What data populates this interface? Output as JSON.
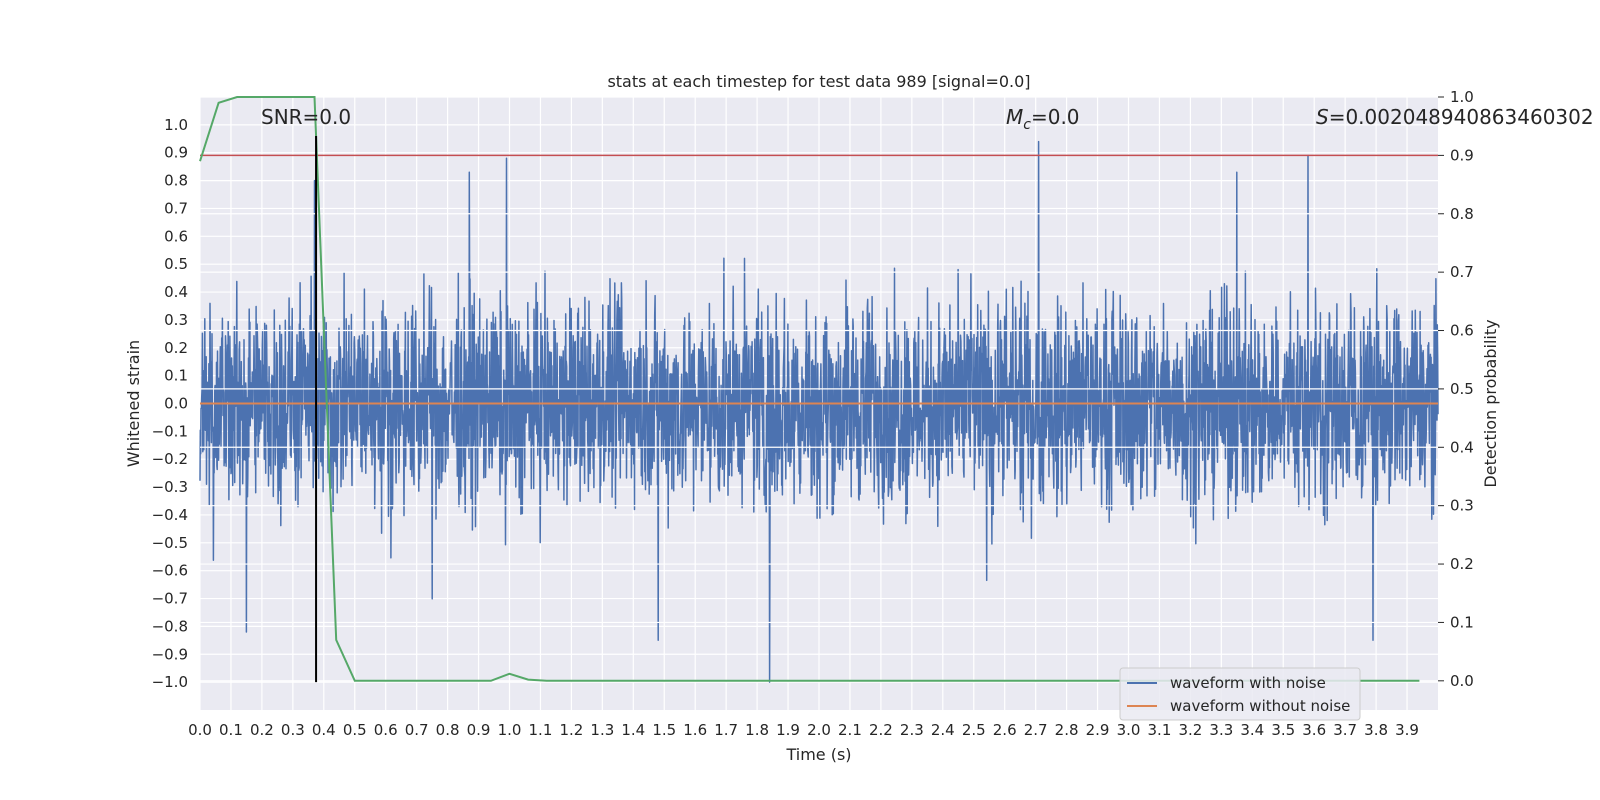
{
  "chart_data": {
    "type": "line",
    "title": "stats at each timestep for test data 989 [signal=0.0]",
    "xlabel": "Time (s)",
    "ylabel": "Whitened strain",
    "y2label": "Detection probability",
    "xlim": [
      0.0,
      4.0
    ],
    "ylim": [
      -1.1,
      1.1
    ],
    "y2lim": [
      -0.05,
      1.0
    ],
    "grid": true,
    "legend_position": "lower-right",
    "x_ticks": [
      "0.0",
      "0.1",
      "0.2",
      "0.3",
      "0.4",
      "0.5",
      "0.6",
      "0.7",
      "0.8",
      "0.9",
      "1.0",
      "1.1",
      "1.2",
      "1.3",
      "1.4",
      "1.5",
      "1.6",
      "1.7",
      "1.8",
      "1.9",
      "2.0",
      "2.1",
      "2.2",
      "2.3",
      "2.4",
      "2.5",
      "2.6",
      "2.7",
      "2.8",
      "2.9",
      "3.0",
      "3.1",
      "3.2",
      "3.3",
      "3.4",
      "3.5",
      "3.6",
      "3.7",
      "3.8",
      "3.9"
    ],
    "y_ticks": [
      "1.0",
      "0.9",
      "0.8",
      "0.7",
      "0.6",
      "0.5",
      "0.4",
      "0.3",
      "0.2",
      "0.1",
      "0.0",
      "−0.1",
      "−0.2",
      "−0.3",
      "−0.4",
      "−0.5",
      "−0.6",
      "−0.7",
      "−0.8",
      "−0.9",
      "−1.0"
    ],
    "y2_ticks": [
      "1.0",
      "0.9",
      "0.8",
      "0.7",
      "0.6",
      "0.5",
      "0.4",
      "0.3",
      "0.2",
      "0.1",
      "0.0"
    ],
    "annotations": {
      "snr": "SNR=0.0",
      "mc_symbol": "M",
      "mc_sub": "c",
      "mc_value": "=0.0",
      "s_symbol": "S",
      "s_value": "=0.002048940863460302"
    },
    "legend": {
      "noisy": "waveform with noise",
      "clean": "waveform without noise"
    },
    "series": [
      {
        "name": "waveform with noise",
        "color": "#4c72b0",
        "description": "dense noise trace, mostly within ±0.5 with spikes",
        "spikes": [
          {
            "x": 0.37,
            "y": 0.8
          },
          {
            "x": 0.87,
            "y": 0.83
          },
          {
            "x": 0.99,
            "y": 0.88
          },
          {
            "x": 2.71,
            "y": 0.94
          },
          {
            "x": 3.58,
            "y": 0.89
          },
          {
            "x": 3.35,
            "y": 0.83
          },
          {
            "x": 1.84,
            "y": -1.0
          },
          {
            "x": 3.79,
            "y": -0.85
          },
          {
            "x": 1.48,
            "y": -0.85
          },
          {
            "x": 0.15,
            "y": -0.82
          }
        ]
      },
      {
        "name": "waveform without noise",
        "color": "#dd8452",
        "x": [
          0.0,
          4.0
        ],
        "y": [
          0.0,
          0.0
        ]
      },
      {
        "name": "detection probability",
        "color": "#55a868",
        "axis": "y2",
        "x": [
          0.0,
          0.06,
          0.12,
          0.19,
          0.25,
          0.31,
          0.37,
          0.44,
          0.5,
          0.56,
          0.62,
          0.69,
          0.75,
          0.81,
          0.87,
          0.94,
          1.0,
          1.06,
          1.12,
          1.5,
          2.0,
          2.5,
          3.0,
          3.5,
          3.94
        ],
        "y": [
          0.89,
          0.99,
          1.0,
          1.0,
          1.0,
          1.0,
          1.0,
          0.07,
          0.0,
          0.0,
          0.0,
          0.0,
          0.0,
          0.0,
          0.0,
          0.0,
          0.012,
          0.002,
          0.0,
          0.0,
          0.0,
          0.0,
          0.0,
          0.0,
          0.0
        ]
      }
    ],
    "threshold": {
      "color": "#c44e52",
      "y2": 0.9
    },
    "vertical_marker": {
      "color": "#000000",
      "x": 0.375,
      "y_from": -1.0,
      "y_to": 0.96
    }
  }
}
